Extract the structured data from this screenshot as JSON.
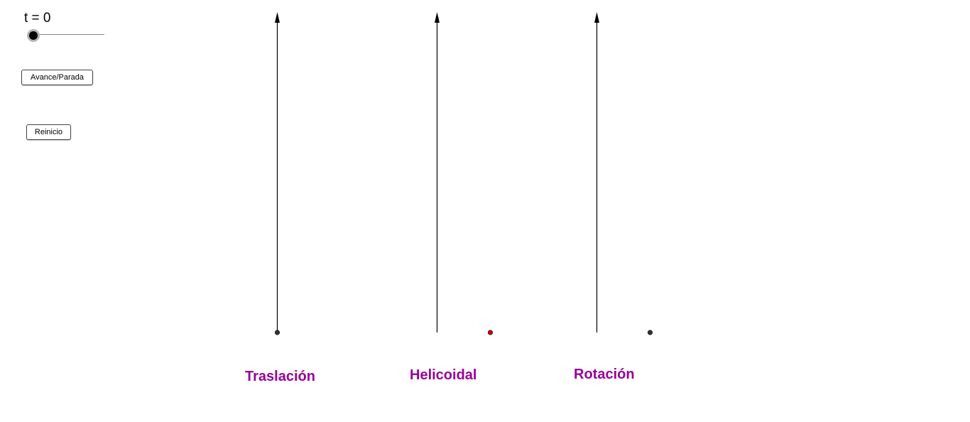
{
  "controls": {
    "slider_label": "t = 0",
    "slider_value": 0,
    "play_pause_label": "Avance/Parada",
    "reset_label": "Reinicio"
  },
  "labels": {
    "translation": "Traslación",
    "helical": "Helicoidal",
    "rotation": "Rotación"
  },
  "colors": {
    "label_color": "#990099",
    "point_dark": "#333333",
    "point_red": "#cc0000",
    "axis": "#000000"
  }
}
